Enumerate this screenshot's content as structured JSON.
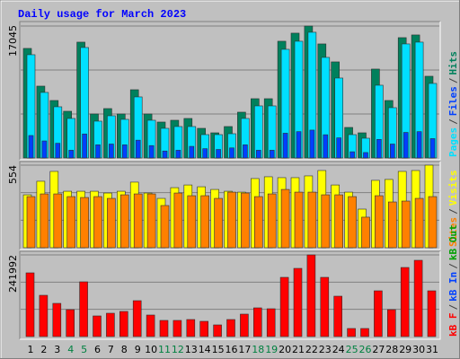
{
  "legend_separator": "/",
  "chart_data": [
    {
      "type": "bar",
      "title": "Daily usage for March 2023",
      "title_color": "#0000ff",
      "ylim": [
        0,
        17045
      ],
      "yticks": [
        17045
      ],
      "grid": true,
      "series": [
        {
          "name": "Pages",
          "color": "#00e0ff",
          "values": [
            13340,
            8468,
            6612,
            5104,
            14268,
            4756,
            5452,
            4988,
            7888,
            4872,
            3828,
            4060,
            4060,
            3016,
            3016,
            3132,
            5104,
            6728,
            6728,
            14036,
            15080,
            16240,
            12992,
            10324,
            3016,
            2552,
            9396,
            6496,
            14732,
            14964,
            9628
          ]
        },
        {
          "name": "Files",
          "color": "#0040ff",
          "values": [
            2900,
            2200,
            1900,
            1000,
            3100,
            1700,
            1800,
            1700,
            2300,
            1600,
            900,
            1000,
            1500,
            1200,
            1100,
            1300,
            1700,
            1000,
            1000,
            3200,
            3400,
            3600,
            3000,
            2600,
            800,
            700,
            2400,
            1800,
            3300,
            3400,
            2500
          ]
        },
        {
          "name": "Hits",
          "color": "#00805c",
          "values": [
            14152,
            9280,
            7424,
            6032,
            14964,
            5684,
            6380,
            5684,
            8816,
            5684,
            4640,
            4872,
            5104,
            3828,
            3248,
            4060,
            5916,
            7656,
            7656,
            15080,
            16124,
            17045,
            14732,
            12412,
            3944,
            3248,
            11484,
            7424,
            15544,
            15892,
            10556
          ]
        }
      ]
    },
    {
      "type": "bar",
      "ylim": [
        0,
        554
      ],
      "yticks": [
        554
      ],
      "grid": true,
      "series": [
        {
          "name": "Sites",
          "color": "#ff8000",
          "values": [
            343,
            361,
            361,
            343,
            337,
            343,
            331,
            355,
            361,
            361,
            283,
            367,
            349,
            349,
            331,
            373,
            367,
            343,
            361,
            391,
            373,
            373,
            355,
            355,
            343,
            205,
            349,
            307,
            313,
            331,
            343
          ]
        },
        {
          "name": "Visits",
          "color": "#ffff00",
          "values": [
            355,
            446,
            512,
            379,
            379,
            379,
            367,
            379,
            440,
            367,
            331,
            403,
            421,
            409,
            391,
            379,
            373,
            464,
            476,
            470,
            470,
            482,
            518,
            421,
            373,
            259,
            452,
            458,
            512,
            518,
            554
          ]
        }
      ]
    },
    {
      "type": "bar",
      "ylim": [
        0,
        241992
      ],
      "yticks": [
        241992
      ],
      "grid": true,
      "categories": [
        "1",
        "2",
        "3",
        "4",
        "5",
        "6",
        "7",
        "8",
        "9",
        "10",
        "11",
        "12",
        "13",
        "14",
        "15",
        "16",
        "17",
        "18",
        "19",
        "20",
        "21",
        "22",
        "23",
        "24",
        "25",
        "26",
        "27",
        "28",
        "29",
        "30",
        "31"
      ],
      "highlight": [
        3,
        4,
        10,
        11,
        17,
        18,
        24,
        25
      ],
      "highlight_color": "#008040",
      "series": [
        {
          "name": "kB F",
          "color": "#ff0000",
          "values": [
            188789,
            122314,
            98383,
            79770,
            162199,
            61157,
            69134,
            74452,
            106360,
            63816,
            47862,
            47862,
            50521,
            45203,
            34567,
            50521,
            66475,
            85088,
            82429,
            175494,
            202084,
            241992,
            175494,
            119655,
            23931,
            23931,
            135609,
            79770,
            204743,
            226015,
            135609
          ]
        }
      ],
      "legend_extra": [
        {
          "name": "kB In",
          "color": "#0040ff"
        },
        {
          "name": "kB Out",
          "color": "#00a000"
        }
      ]
    }
  ]
}
